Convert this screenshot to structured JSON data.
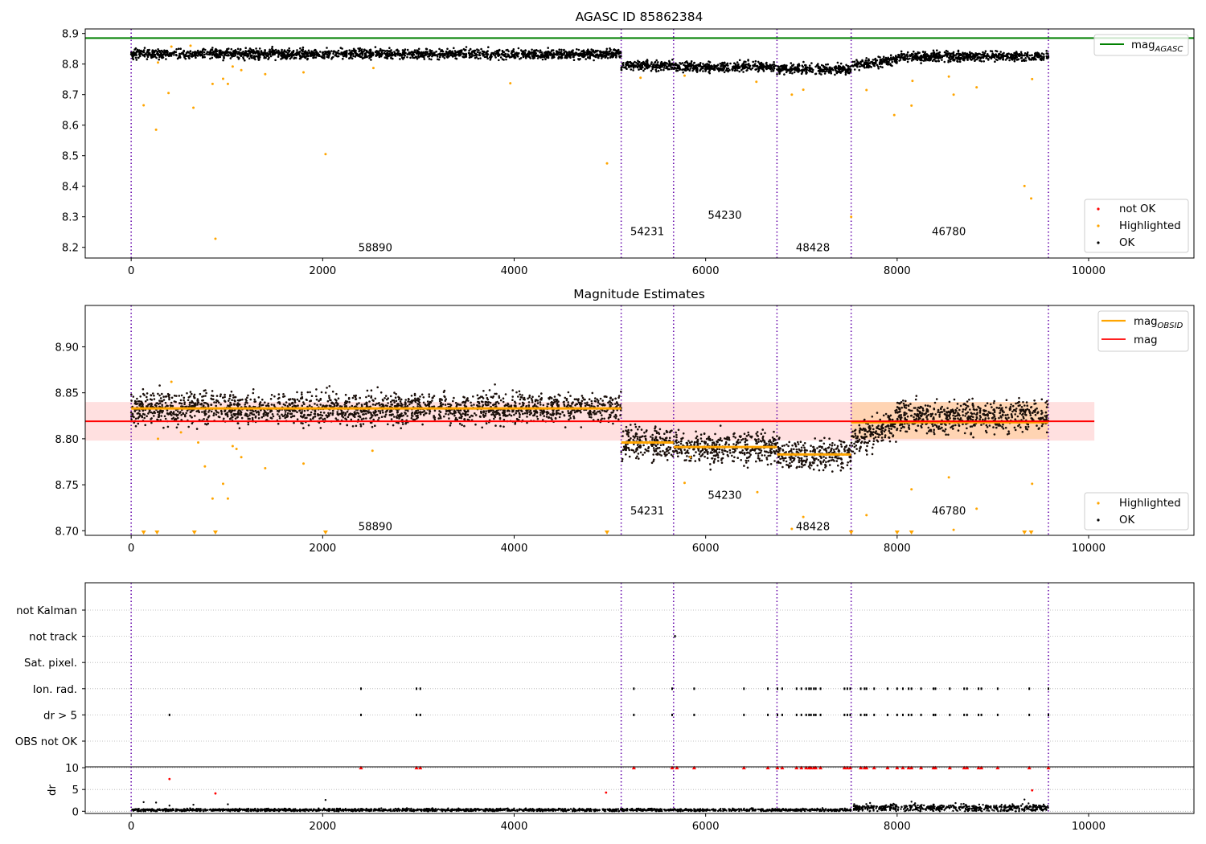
{
  "chart_data": [
    {
      "type": "scatter",
      "title": "AGASC ID 85862384",
      "xlim": [
        -480,
        11100
      ],
      "ylim": [
        8.165,
        8.915
      ],
      "x_ticks": [
        0,
        2000,
        4000,
        6000,
        8000,
        10000
      ],
      "y_ticks": [
        8.2,
        8.3,
        8.4,
        8.5,
        8.6,
        8.7,
        8.8,
        8.9
      ],
      "reference_lines": [
        {
          "name": "mag_AGASC",
          "label_base": "mag",
          "label_sub": "AGASC",
          "value": 8.885,
          "color": "#008000"
        }
      ],
      "segment_boundaries": [
        0,
        5118,
        5665,
        6745,
        7520,
        9580
      ],
      "observations": [
        {
          "obsid": "58890",
          "x": 2550,
          "y": 8.2
        },
        {
          "obsid": "54231",
          "x": 5390,
          "y": 8.253
        },
        {
          "obsid": "54230",
          "x": 6200,
          "y": 8.307
        },
        {
          "obsid": "48428",
          "x": 7120,
          "y": 8.2
        },
        {
          "obsid": "46780",
          "x": 8540,
          "y": 8.253
        }
      ],
      "series": [
        {
          "name": "not OK",
          "color": "#ff0000",
          "description": "none visible"
        },
        {
          "name": "Highlighted",
          "color": "#ffa500",
          "points": [
            [
              130,
              8.665
            ],
            [
              260,
              8.585
            ],
            [
              280,
              8.805
            ],
            [
              390,
              8.705
            ],
            [
              420,
              8.857
            ],
            [
              620,
              8.86
            ],
            [
              650,
              8.657
            ],
            [
              880,
              8.228
            ],
            [
              850,
              8.735
            ],
            [
              960,
              8.752
            ],
            [
              1010,
              8.735
            ],
            [
              1060,
              8.792
            ],
            [
              1150,
              8.78
            ],
            [
              1400,
              8.767
            ],
            [
              1800,
              8.773
            ],
            [
              2030,
              8.505
            ],
            [
              2530,
              8.787
            ],
            [
              3960,
              8.737
            ],
            [
              4970,
              8.475
            ],
            [
              5320,
              8.755
            ],
            [
              5780,
              8.762
            ],
            [
              6530,
              8.742
            ],
            [
              6900,
              8.7
            ],
            [
              7020,
              8.716
            ],
            [
              7520,
              8.3
            ],
            [
              7680,
              8.715
            ],
            [
              7970,
              8.633
            ],
            [
              8150,
              8.664
            ],
            [
              8160,
              8.745
            ],
            [
              8540,
              8.759
            ],
            [
              8590,
              8.7
            ],
            [
              8830,
              8.724
            ],
            [
              9330,
              8.401
            ],
            [
              9400,
              8.36
            ],
            [
              9410,
              8.751
            ]
          ]
        },
        {
          "name": "OK",
          "color": "#000000",
          "segments": [
            {
              "x0": 0,
              "x1": 5118,
              "y": 8.833
            },
            {
              "x0": 5118,
              "x1": 5665,
              "y": 8.796
            },
            {
              "x0": 5665,
              "x1": 6745,
              "y": 8.791
            },
            {
              "x0": 6745,
              "x1": 7520,
              "y": 8.783
            },
            {
              "x0": 7520,
              "x1": 8000,
              "y": 8.795
            },
            {
              "x0": 8000,
              "x1": 9580,
              "y": 8.825
            }
          ]
        }
      ],
      "legends": [
        {
          "position": "top-right",
          "entries": [
            "mag_AGASC"
          ]
        },
        {
          "position": "bottom-right",
          "entries": [
            "not OK",
            "Highlighted",
            "OK"
          ]
        }
      ]
    },
    {
      "type": "scatter",
      "title": "Magnitude Estimates",
      "xlim": [
        -480,
        11100
      ],
      "ylim": [
        8.695,
        8.945
      ],
      "x_ticks": [
        0,
        2000,
        4000,
        6000,
        8000,
        10000
      ],
      "y_ticks": [
        8.7,
        8.75,
        8.8,
        8.85,
        8.9
      ],
      "reference_lines": [
        {
          "name": "mag",
          "value": 8.819,
          "band": [
            8.798,
            8.84
          ],
          "color": "#ff0000",
          "x_range": [
            -480,
            10060
          ]
        }
      ],
      "obsid_lines": [
        {
          "x0": 0,
          "x1": 5118,
          "y": 8.833
        },
        {
          "x0": 5118,
          "x1": 5665,
          "y": 8.796
        },
        {
          "x0": 5665,
          "x1": 6745,
          "y": 8.791
        },
        {
          "x0": 6745,
          "x1": 7520,
          "y": 8.783
        },
        {
          "x0": 7520,
          "x1": 9580,
          "y": 8.818,
          "band": [
            8.8,
            8.84
          ]
        }
      ],
      "segment_boundaries": [
        0,
        5118,
        5665,
        6745,
        7520,
        9580
      ],
      "observations": [
        {
          "obsid": "58890",
          "x": 2550,
          "y": 8.705
        },
        {
          "obsid": "54231",
          "x": 5390,
          "y": 8.722
        },
        {
          "obsid": "54230",
          "x": 6200,
          "y": 8.739
        },
        {
          "obsid": "48428",
          "x": 7120,
          "y": 8.705
        },
        {
          "obsid": "46780",
          "x": 8540,
          "y": 8.722
        }
      ],
      "series": [
        {
          "name": "Highlighted",
          "color": "#ffa500",
          "points": [
            [
              280,
              8.8
            ],
            [
              420,
              8.862
            ],
            [
              520,
              8.807
            ],
            [
              700,
              8.796
            ],
            [
              770,
              8.77
            ],
            [
              850,
              8.735
            ],
            [
              960,
              8.751
            ],
            [
              1010,
              8.735
            ],
            [
              1060,
              8.792
            ],
            [
              1100,
              8.789
            ],
            [
              1150,
              8.78
            ],
            [
              1400,
              8.768
            ],
            [
              1800,
              8.773
            ],
            [
              2520,
              8.787
            ],
            [
              5780,
              8.752
            ],
            [
              5840,
              8.78
            ],
            [
              6540,
              8.742
            ],
            [
              6900,
              8.702
            ],
            [
              7020,
              8.715
            ],
            [
              7680,
              8.717
            ],
            [
              8150,
              8.745
            ],
            [
              8540,
              8.758
            ],
            [
              8590,
              8.701
            ],
            [
              8830,
              8.724
            ],
            [
              9410,
              8.751
            ]
          ],
          "below_range": [
            130,
            270,
            660,
            880,
            2030,
            4970,
            7520,
            8000,
            8150,
            9330,
            9400
          ]
        },
        {
          "name": "OK",
          "color": "#000000",
          "segments": [
            {
              "x0": 0,
              "x1": 5118,
              "y": 8.833
            },
            {
              "x0": 5118,
              "x1": 5665,
              "y": 8.796
            },
            {
              "x0": 5665,
              "x1": 6745,
              "y": 8.791
            },
            {
              "x0": 6745,
              "x1": 7520,
              "y": 8.783
            },
            {
              "x0": 7520,
              "x1": 8000,
              "y": 8.797
            },
            {
              "x0": 8000,
              "x1": 9580,
              "y": 8.824
            }
          ]
        }
      ],
      "legends": [
        {
          "position": "top-right",
          "entries": [
            "mag_OBSID",
            "mag"
          ],
          "labels": [
            {
              "base": "mag",
              "sub": "OBSID",
              "color": "#ffa500"
            },
            {
              "base": "mag",
              "sub": "",
              "color": "#ff0000"
            }
          ]
        },
        {
          "position": "bottom-right",
          "entries": [
            "Highlighted",
            "OK"
          ]
        }
      ]
    },
    {
      "type": "scatter",
      "title": "",
      "xlim": [
        -480,
        11100
      ],
      "categories": [
        "not Kalman",
        "not track",
        "Sat. pixel.",
        "Ion. rad.",
        "dr > 5",
        "OBS not OK"
      ],
      "segment_boundaries": [
        0,
        5118,
        5665,
        6745,
        7520,
        9580
      ],
      "flag_points": {
        "not track": [
          5680
        ],
        "Ion. rad.": [
          2400,
          2980,
          3020,
          5250,
          5650,
          5880,
          6400,
          6650,
          6750,
          6800,
          6950,
          7000,
          7050,
          7080,
          7100,
          7130,
          7150,
          7200,
          7450,
          7480,
          7510,
          7620,
          7660,
          7680,
          7760,
          7900,
          8000,
          8060,
          8120,
          8150,
          8250,
          8380,
          8400,
          8550,
          8700,
          8730,
          8850,
          8880,
          9050,
          9380,
          9580
        ],
        "dr > 5": [
          400,
          2400,
          2980,
          3020,
          5250,
          5650,
          5880,
          6400,
          6650,
          6750,
          6800,
          6950,
          7000,
          7050,
          7080,
          7100,
          7130,
          7150,
          7200,
          7450,
          7480,
          7510,
          7620,
          7660,
          7680,
          7760,
          7900,
          8000,
          8060,
          8120,
          8150,
          8250,
          8380,
          8400,
          8550,
          8700,
          8730,
          8850,
          8880,
          9050,
          9380,
          9580
        ]
      }
    },
    {
      "type": "scatter",
      "title": "",
      "ylabel": "dr",
      "xlim": [
        -480,
        11100
      ],
      "ylim": [
        -0.5,
        10.2
      ],
      "x_ticks": [
        0,
        2000,
        4000,
        6000,
        8000,
        10000
      ],
      "y_ticks": [
        0,
        5,
        10
      ],
      "segment_boundaries": [
        0,
        5118,
        5665,
        6745,
        7520,
        9580
      ],
      "series": [
        {
          "name": "OK",
          "color": "#000000",
          "segments": [
            {
              "x0": 0,
              "x1": 7520,
              "y": 0.3
            },
            {
              "x0": 7520,
              "x1": 9580,
              "y": 0.8
            }
          ],
          "points": [
            [
              130,
              2.1
            ],
            [
              260,
              2.0
            ],
            [
              400,
              1.3
            ],
            [
              650,
              1.5
            ],
            [
              1010,
              1.6
            ],
            [
              2030,
              2.6
            ],
            [
              8150,
              2.2
            ],
            [
              9330,
              2.7
            ]
          ]
        },
        {
          "name": "not OK",
          "color": "#ff0000",
          "points": [
            [
              400,
              7.4
            ],
            [
              880,
              4.1
            ],
            [
              4960,
              4.3
            ],
            [
              9410,
              4.8
            ]
          ],
          "capped": [
            2400,
            2980,
            3020,
            5250,
            5650,
            5700,
            5880,
            6400,
            6650,
            6750,
            6800,
            6950,
            7000,
            7050,
            7080,
            7100,
            7130,
            7150,
            7200,
            7450,
            7480,
            7510,
            7620,
            7660,
            7680,
            7760,
            7900,
            8000,
            8060,
            8120,
            8150,
            8250,
            8380,
            8400,
            8550,
            8700,
            8730,
            8850,
            8880,
            9050,
            9380,
            9580
          ]
        }
      ]
    }
  ]
}
